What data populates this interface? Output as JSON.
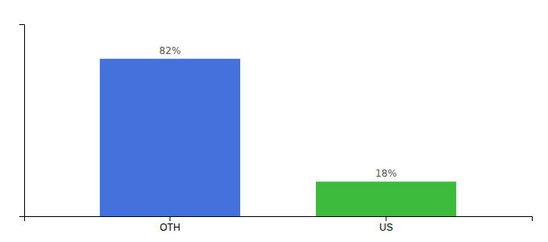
{
  "chart_data": {
    "type": "bar",
    "categories": [
      "OTH",
      "US"
    ],
    "values": [
      82,
      18
    ],
    "value_labels": [
      "82%",
      "18%"
    ],
    "colors": [
      "#4472DD",
      "#3CBB3C"
    ],
    "ylim": [
      0,
      100
    ],
    "data_labels": true,
    "tick_labels": "x"
  }
}
